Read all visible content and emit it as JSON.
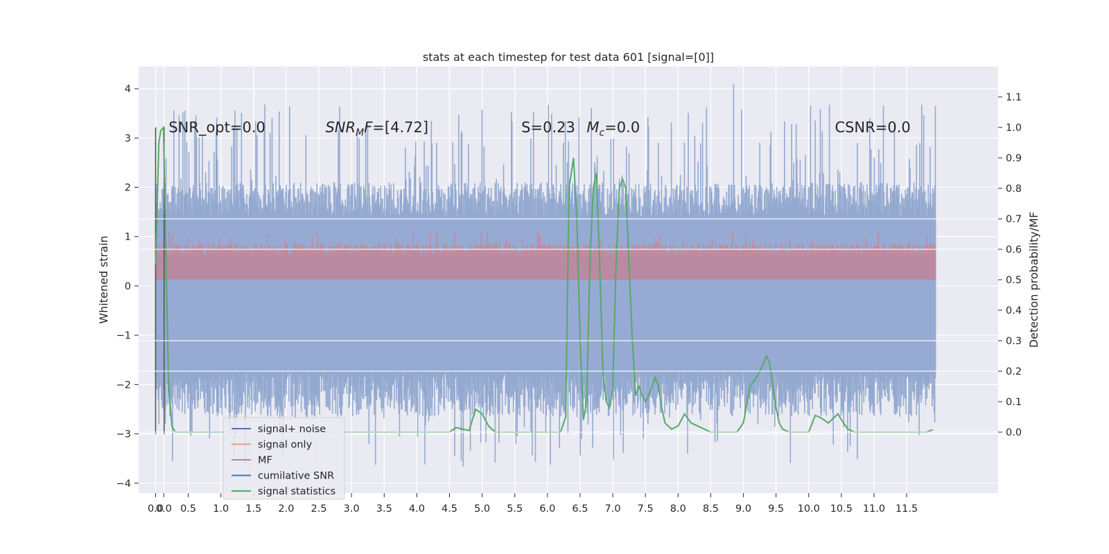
{
  "chart_data": {
    "type": "line",
    "title": "stats at each timestep for test data 601 [signal=[0]]",
    "ylabel": "Whitened strain",
    "ylabel_right": "Detection probability/MF",
    "xlim": [
      -0.26,
      12.9
    ],
    "ylim": [
      -4.2,
      4.45
    ],
    "ylim_right": [
      -0.2,
      1.2
    ],
    "xticks": [
      "0.0",
      "0.0",
      "0.5",
      "1.0",
      "1.5",
      "2.0",
      "2.5",
      "3.0",
      "3.5",
      "4.0",
      "4.5",
      "5.0",
      "5.5",
      "6.0",
      "6.5",
      "7.0",
      "7.5",
      "8.0",
      "8.5",
      "9.0",
      "9.5",
      "10.0",
      "10.5",
      "11.0",
      "11.5"
    ],
    "xtick_values": [
      0.0,
      0.125,
      0.5,
      1.0,
      1.5,
      2.0,
      2.5,
      3.0,
      3.5,
      4.0,
      4.5,
      5.0,
      5.5,
      6.0,
      6.5,
      7.0,
      7.5,
      8.0,
      8.5,
      9.0,
      9.5,
      10.0,
      10.5,
      11.0,
      11.5
    ],
    "yticks": [
      "4",
      "3",
      "2",
      "1",
      "0",
      "−1",
      "−2",
      "−3",
      "−4"
    ],
    "ytick_values": [
      4,
      3,
      2,
      1,
      0,
      -1,
      -2,
      -3,
      -4
    ],
    "yticks_right": [
      "1.1",
      "1.0",
      "0.9",
      "0.8",
      "0.7",
      "0.6",
      "0.5",
      "0.4",
      "0.3",
      "0.2",
      "0.1",
      "0.0"
    ],
    "ytick_values_right": [
      1.1,
      1.0,
      0.9,
      0.8,
      0.7,
      0.6,
      0.5,
      0.4,
      0.3,
      0.2,
      0.1,
      0.0
    ],
    "grid": true,
    "legend_position": "lower-left",
    "annotations": [
      {
        "text": "SNR_opt=0.0",
        "x": 0.2,
        "y": 1.0
      },
      {
        "text": "SNR_MF=[4.72]",
        "x": 2.6,
        "y": 1.0
      },
      {
        "text": "S=0.23",
        "x": 5.6,
        "y": 1.0
      },
      {
        "text": "M_c=0.0",
        "x": 6.6,
        "y": 1.0
      },
      {
        "text": "CSNR=0.0",
        "x": 10.4,
        "y": 1.0
      }
    ],
    "vertical_lines": [
      0.0,
      0.13
    ],
    "series": [
      {
        "name": "signal+ noise",
        "color": "#4c72b0",
        "axis": "left",
        "band": [
          -1.75,
          1.4
        ],
        "spikes_high": 3.7,
        "spikes_low": -3.7,
        "peak": {
          "x": 8.85,
          "y": 4.1
        }
      },
      {
        "name": "signal only",
        "color": "#dd8452",
        "axis": "left",
        "values": []
      },
      {
        "name": "MF",
        "color": "#c44e52",
        "axis": "right",
        "band": [
          0.5,
          0.58
        ],
        "max": 0.66
      },
      {
        "name": "cumilative SNR",
        "color": "#4c72b0",
        "axis": "right",
        "values": []
      },
      {
        "name": "signal statistics",
        "color": "#55a868",
        "axis": "right",
        "x": [
          0.0,
          0.05,
          0.08,
          0.12,
          0.16,
          0.2,
          0.25,
          0.3,
          0.5,
          1.0,
          2.0,
          3.0,
          4.0,
          4.5,
          4.6,
          4.7,
          4.8,
          4.9,
          5.0,
          5.1,
          5.2,
          5.3,
          5.5,
          6.0,
          6.2,
          6.28,
          6.33,
          6.4,
          6.45,
          6.5,
          6.55,
          6.6,
          6.65,
          6.7,
          6.75,
          6.8,
          6.85,
          6.9,
          6.95,
          7.0,
          7.05,
          7.1,
          7.15,
          7.2,
          7.25,
          7.3,
          7.35,
          7.4,
          7.45,
          7.5,
          7.55,
          7.6,
          7.65,
          7.7,
          7.75,
          7.8,
          7.9,
          8.0,
          8.1,
          8.2,
          8.3,
          8.5,
          8.7,
          8.9,
          9.0,
          9.1,
          9.2,
          9.3,
          9.35,
          9.4,
          9.45,
          9.5,
          9.55,
          9.6,
          9.7,
          9.8,
          10.0,
          10.1,
          10.15,
          10.2,
          10.3,
          10.4,
          10.45,
          10.5,
          10.6,
          10.7,
          10.8,
          11.0,
          11.5,
          11.8,
          11.9
        ],
        "values": [
          0.55,
          0.95,
          0.99,
          1.0,
          0.55,
          0.15,
          0.02,
          0.0,
          0.0,
          0.0,
          0.0,
          0.0,
          0.0,
          0.0,
          0.015,
          0.01,
          0.005,
          0.075,
          0.06,
          0.02,
          0.0,
          0.0,
          0.0,
          0.0,
          0.0,
          0.05,
          0.8,
          0.9,
          0.7,
          0.3,
          0.04,
          0.1,
          0.55,
          0.8,
          0.85,
          0.55,
          0.2,
          0.1,
          0.08,
          0.15,
          0.55,
          0.8,
          0.83,
          0.8,
          0.55,
          0.3,
          0.12,
          0.15,
          0.12,
          0.1,
          0.12,
          0.15,
          0.18,
          0.15,
          0.08,
          0.03,
          0.01,
          0.02,
          0.06,
          0.03,
          0.02,
          0.0,
          0.0,
          0.0,
          0.03,
          0.15,
          0.18,
          0.22,
          0.25,
          0.23,
          0.15,
          0.08,
          0.03,
          0.01,
          0.0,
          0.0,
          0.0,
          0.055,
          0.05,
          0.045,
          0.03,
          0.05,
          0.06,
          0.04,
          0.01,
          0.0,
          0.0,
          0.0,
          0.0,
          0.0,
          0.008
        ]
      }
    ]
  }
}
